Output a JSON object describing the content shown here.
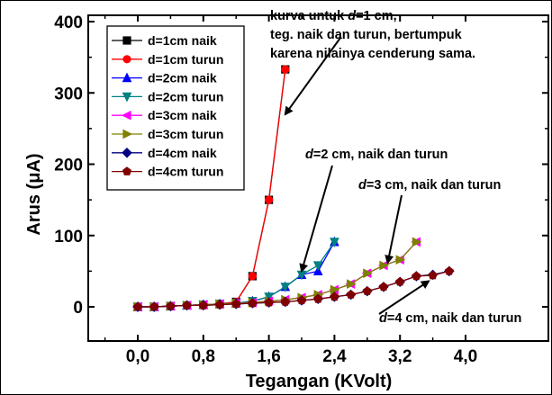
{
  "chart_data": {
    "type": "line",
    "xlabel": "Tegangan (KVolt)",
    "ylabel": "Arus (μA)",
    "xlim": [
      -0.55,
      4.0
    ],
    "ylim": [
      -48,
      400
    ],
    "xticks": [
      0.0,
      0.8,
      1.6,
      2.4,
      3.2,
      4.0
    ],
    "xtick_labels": [
      "0,0",
      "0,8",
      "1,6",
      "2,4",
      "3,2",
      "4,0"
    ],
    "yticks": [
      0,
      100,
      200,
      300,
      400
    ],
    "ytick_labels": [
      "0",
      "100",
      "200",
      "300",
      "400"
    ],
    "grid": false,
    "legend_position": "top-left",
    "series": [
      {
        "name": "d=1cm naik",
        "color": "#000000",
        "marker": "square",
        "x": [
          0.0,
          0.2,
          0.4,
          0.6,
          0.8,
          1.0,
          1.2,
          1.4,
          1.6,
          1.8
        ],
        "y": [
          0,
          0,
          1,
          2,
          3,
          4,
          7,
          43,
          150,
          333
        ]
      },
      {
        "name": "d=1cm turun",
        "color": "#ff0000",
        "marker": "circle",
        "x": [
          0.0,
          0.2,
          0.4,
          0.6,
          0.8,
          1.0,
          1.2,
          1.4,
          1.6,
          1.8
        ],
        "y": [
          0,
          0,
          1,
          2,
          3,
          4,
          7,
          43,
          150,
          333
        ]
      },
      {
        "name": "d=2cm naik",
        "color": "#0000ff",
        "marker": "triangle-up",
        "x": [
          0.0,
          0.2,
          0.4,
          0.6,
          0.8,
          1.0,
          1.2,
          1.4,
          1.6,
          1.8,
          2.0,
          2.2,
          2.4
        ],
        "y": [
          0,
          0,
          1,
          2,
          3,
          4,
          5,
          8,
          14,
          28,
          45,
          50,
          91
        ]
      },
      {
        "name": "d=2cm turun",
        "color": "#008080",
        "marker": "triangle-down",
        "x": [
          0.0,
          0.2,
          0.4,
          0.6,
          0.8,
          1.0,
          1.2,
          1.4,
          1.6,
          1.8,
          2.0,
          2.2,
          2.4
        ],
        "y": [
          0,
          0,
          1,
          2,
          3,
          4,
          5,
          8,
          14,
          28,
          45,
          58,
          91
        ]
      },
      {
        "name": "d=3cm naik",
        "color": "#ff00ff",
        "marker": "triangle-left",
        "x": [
          0.0,
          0.2,
          0.4,
          0.6,
          0.8,
          1.0,
          1.2,
          1.4,
          1.6,
          1.8,
          2.0,
          2.2,
          2.4,
          2.6,
          2.8,
          3.0,
          3.2,
          3.4
        ],
        "y": [
          0,
          0,
          1,
          2,
          3,
          4,
          5,
          6,
          8,
          10,
          13,
          17,
          24,
          32,
          47,
          58,
          66,
          91
        ]
      },
      {
        "name": "d=3cm turun",
        "color": "#808000",
        "marker": "triangle-right",
        "x": [
          0.0,
          0.2,
          0.4,
          0.6,
          0.8,
          1.0,
          1.2,
          1.4,
          1.6,
          1.8,
          2.0,
          2.2,
          2.4,
          2.6,
          2.8,
          3.0,
          3.2,
          3.4
        ],
        "y": [
          0,
          0,
          1,
          2,
          3,
          4,
          5,
          6,
          8,
          10,
          13,
          17,
          24,
          32,
          47,
          58,
          66,
          91
        ]
      },
      {
        "name": "d=4cm naik",
        "color": "#000080",
        "marker": "diamond",
        "x": [
          0.0,
          0.2,
          0.4,
          0.6,
          0.8,
          1.0,
          1.2,
          1.4,
          1.6,
          1.8,
          2.0,
          2.2,
          2.4,
          2.6,
          2.8,
          3.0,
          3.2,
          3.4,
          3.6,
          3.8
        ],
        "y": [
          0,
          0,
          1,
          2,
          2,
          3,
          4,
          5,
          6,
          7,
          9,
          11,
          14,
          17,
          22,
          28,
          35,
          43,
          45,
          50
        ]
      },
      {
        "name": "d=4cm turun",
        "color": "#800000",
        "marker": "pentagon",
        "x": [
          0.0,
          0.2,
          0.4,
          0.6,
          0.8,
          1.0,
          1.2,
          1.4,
          1.6,
          1.8,
          2.0,
          2.2,
          2.4,
          2.6,
          2.8,
          3.0,
          3.2,
          3.4,
          3.6,
          3.8
        ],
        "y": [
          0,
          0,
          1,
          2,
          2,
          3,
          4,
          5,
          6,
          7,
          9,
          11,
          14,
          17,
          22,
          28,
          35,
          43,
          44,
          50
        ]
      }
    ],
    "annotations": [
      {
        "lines": [
          "kurva untuk d=1 cm,",
          "teg. naik dan turun, bertumpuk",
          "karena nilainya cenderung sama."
        ],
        "arrow_to": [
          1.8,
          270
        ]
      },
      {
        "lines": [
          "d=2 cm, naik dan turun"
        ],
        "arrow_to": [
          2.0,
          50
        ]
      },
      {
        "lines": [
          "d=3 cm, naik dan turun"
        ],
        "arrow_to": [
          3.05,
          62
        ]
      },
      {
        "lines": [
          "d=4 cm, naik dan turun"
        ],
        "arrow_to": [
          3.55,
          36
        ]
      }
    ]
  }
}
